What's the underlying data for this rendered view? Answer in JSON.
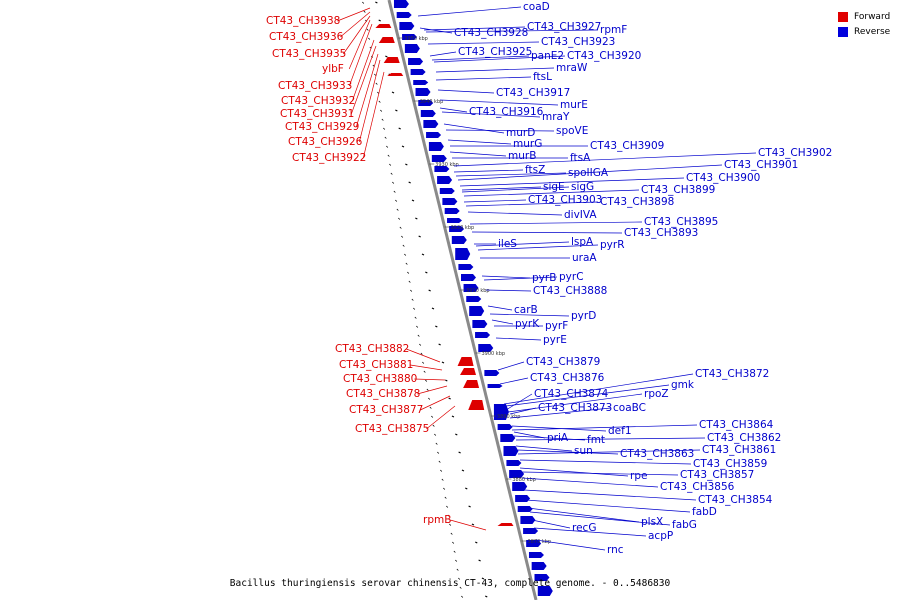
{
  "legend": {
    "forward_label": "Forward",
    "reverse_label": "Reverse",
    "forward_color": "#e00000",
    "reverse_color": "#0000dd"
  },
  "caption": "Bacillus thuringiensis serovar chinensis CT-43, complete genome. - 0..5486830",
  "colors": {
    "forward": "#dd0000",
    "reverse": "#0000cc",
    "backbone": "#8a8a8a",
    "ticks": "#000000"
  },
  "scale_ticks": [
    "3960 kbp",
    "3950 kbp",
    "3940 kbp",
    "3930 kbp",
    "3920 kbp",
    "3910 kbp",
    "3900 kbp",
    "3890 kbp",
    "3880 kbp",
    "3870 kbp"
  ],
  "forward_genes": [
    "CT43_CH3938",
    "CT43_CH3936",
    "CT43_CH3935",
    "ylbF",
    "CT43_CH3933",
    "CT43_CH3932",
    "CT43_CH3931",
    "CT43_CH3929",
    "CT43_CH3926",
    "CT43_CH3922",
    "CT43_CH3882",
    "CT43_CH3881",
    "CT43_CH3880",
    "CT43_CH3878",
    "CT43_CH3877",
    "CT43_CH3875",
    "rpmB"
  ],
  "reverse_genes": [
    "coaD",
    "CT43_CH3928",
    "CT43_CH3927",
    "rpmF",
    "CT43_CH3923",
    "CT43_CH3925",
    "panE2",
    "CT43_CH3920",
    "mraW",
    "ftsL",
    "CT43_CH3917",
    "murE",
    "CT43_CH3916",
    "mraY",
    "murD",
    "spoVE",
    "murG",
    "CT43_CH3909",
    "murB",
    "ftsA",
    "CT43_CH3902",
    "ftsZ",
    "spoIIGA",
    "CT43_CH3901",
    "CT43_CH3900",
    "sigE",
    "sigG",
    "CT43_CH3899",
    "CT43_CH3903",
    "CT43_CH3898",
    "divIVA",
    "CT43_CH3895",
    "CT43_CH3893",
    "ileS",
    "lspA",
    "pyrR",
    "uraA",
    "pyrB",
    "pyrC",
    "CT43_CH3888",
    "carB",
    "pyrD",
    "pyrK",
    "pyrF",
    "pyrE",
    "CT43_CH3879",
    "CT43_CH3876",
    "CT43_CH3872",
    "gmk",
    "CT43_CH3874",
    "rpoZ",
    "CT43_CH3873",
    "coaBC",
    "def1",
    "CT43_CH3864",
    "priA",
    "fmt",
    "CT43_CH3862",
    "sun",
    "CT43_CH3863",
    "CT43_CH3861",
    "CT43_CH3859",
    "rpe",
    "CT43_CH3857",
    "CT43_CH3856",
    "CT43_CH3854",
    "fabD",
    "plsX",
    "fabG",
    "recG",
    "acpP",
    "rnc"
  ]
}
